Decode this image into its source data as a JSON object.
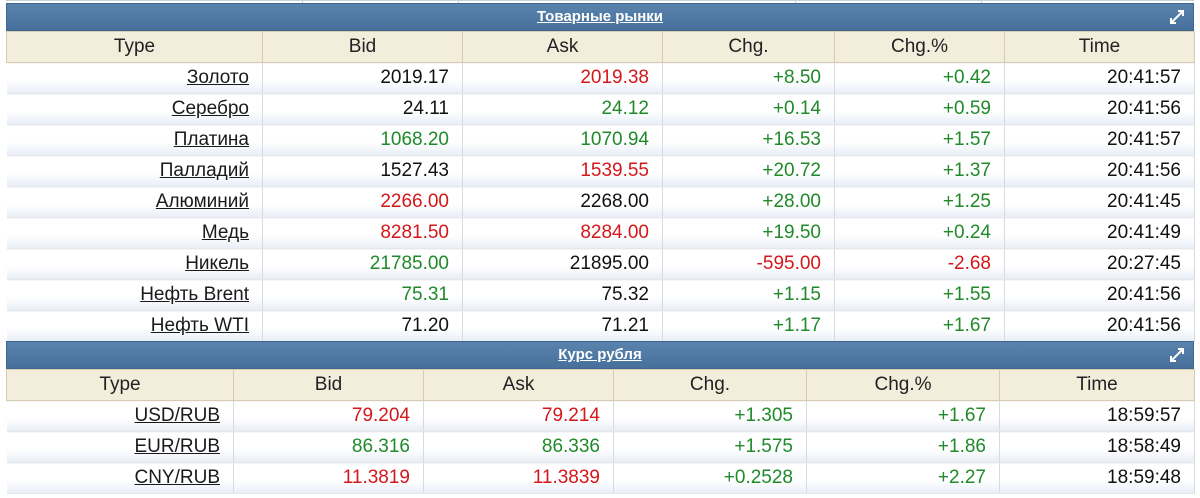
{
  "commodities": {
    "title": "Товарные рынки",
    "columns": [
      "Type",
      "Bid",
      "Ask",
      "Chg.",
      "Chg.%",
      "Time"
    ],
    "rows": [
      {
        "type": "Золото",
        "bid": "2019.17",
        "bid_color": "black",
        "ask": "2019.38",
        "ask_color": "red",
        "chg": "+8.50",
        "chg_color": "green",
        "pct": "+0.42",
        "pct_color": "green",
        "time": "20:41:57"
      },
      {
        "type": "Серебро",
        "bid": "24.11",
        "bid_color": "black",
        "ask": "24.12",
        "ask_color": "green",
        "chg": "+0.14",
        "chg_color": "green",
        "pct": "+0.59",
        "pct_color": "green",
        "time": "20:41:56"
      },
      {
        "type": "Платина",
        "bid": "1068.20",
        "bid_color": "green",
        "ask": "1070.94",
        "ask_color": "green",
        "chg": "+16.53",
        "chg_color": "green",
        "pct": "+1.57",
        "pct_color": "green",
        "time": "20:41:57"
      },
      {
        "type": "Палладий",
        "bid": "1527.43",
        "bid_color": "black",
        "ask": "1539.55",
        "ask_color": "red",
        "chg": "+20.72",
        "chg_color": "green",
        "pct": "+1.37",
        "pct_color": "green",
        "time": "20:41:56"
      },
      {
        "type": "Алюминий",
        "bid": "2266.00",
        "bid_color": "red",
        "ask": "2268.00",
        "ask_color": "black",
        "chg": "+28.00",
        "chg_color": "green",
        "pct": "+1.25",
        "pct_color": "green",
        "time": "20:41:45"
      },
      {
        "type": "Медь",
        "bid": "8281.50",
        "bid_color": "red",
        "ask": "8284.00",
        "ask_color": "red",
        "chg": "+19.50",
        "chg_color": "green",
        "pct": "+0.24",
        "pct_color": "green",
        "time": "20:41:49"
      },
      {
        "type": "Никель",
        "bid": "21785.00",
        "bid_color": "green",
        "ask": "21895.00",
        "ask_color": "black",
        "chg": "-595.00",
        "chg_color": "red",
        "pct": "-2.68",
        "pct_color": "red",
        "time": "20:27:45"
      },
      {
        "type": "Нефть Brent",
        "bid": "75.31",
        "bid_color": "green",
        "ask": "75.32",
        "ask_color": "black",
        "chg": "+1.15",
        "chg_color": "green",
        "pct": "+1.55",
        "pct_color": "green",
        "time": "20:41:56"
      },
      {
        "type": "Нефть WTI",
        "bid": "71.20",
        "bid_color": "black",
        "ask": "71.21",
        "ask_color": "black",
        "chg": "+1.17",
        "chg_color": "green",
        "pct": "+1.67",
        "pct_color": "green",
        "time": "20:41:56"
      }
    ]
  },
  "ruble": {
    "title": "Курс рубля",
    "columns": [
      "Type",
      "Bid",
      "Ask",
      "Chg.",
      "Chg.%",
      "Time"
    ],
    "rows": [
      {
        "type": "USD/RUB",
        "bid": "79.204",
        "bid_color": "red",
        "ask": "79.214",
        "ask_color": "red",
        "chg": "+1.305",
        "chg_color": "green",
        "pct": "+1.67",
        "pct_color": "green",
        "time": "18:59:57"
      },
      {
        "type": "EUR/RUB",
        "bid": "86.316",
        "bid_color": "green",
        "ask": "86.336",
        "ask_color": "green",
        "chg": "+1.575",
        "chg_color": "green",
        "pct": "+1.86",
        "pct_color": "green",
        "time": "18:58:49"
      },
      {
        "type": "CNY/RUB",
        "bid": "11.3819",
        "bid_color": "red",
        "ask": "11.3839",
        "ask_color": "red",
        "chg": "+0.2528",
        "chg_color": "green",
        "pct": "+2.27",
        "pct_color": "green",
        "time": "18:59:48"
      }
    ]
  },
  "icons": {
    "expand": "expand-arrow-icon"
  },
  "colors": {
    "header_bg": "#4f79a4",
    "col_header_bg": "#f3eddc",
    "up": "#208a2a",
    "down": "#d4171b"
  }
}
